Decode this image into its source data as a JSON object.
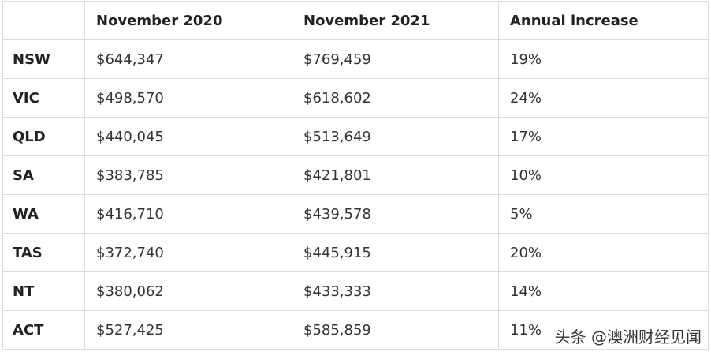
{
  "chart_data": {
    "type": "table",
    "columns": [
      "",
      "November 2020",
      "November 2021",
      "Annual increase"
    ],
    "rows": [
      {
        "state": "NSW",
        "nov_2020": "$644,347",
        "nov_2021": "$769,459",
        "increase": "19%"
      },
      {
        "state": "VIC",
        "nov_2020": "$498,570",
        "nov_2021": "$618,602",
        "increase": "24%"
      },
      {
        "state": "QLD",
        "nov_2020": "$440,045",
        "nov_2021": "$513,649",
        "increase": "17%"
      },
      {
        "state": "SA",
        "nov_2020": "$383,785",
        "nov_2021": "$421,801",
        "increase": "10%"
      },
      {
        "state": "WA",
        "nov_2020": "$416,710",
        "nov_2021": "$439,578",
        "increase": "5%"
      },
      {
        "state": "TAS",
        "nov_2020": "$372,740",
        "nov_2021": "$445,915",
        "increase": "20%"
      },
      {
        "state": "NT",
        "nov_2020": "$380,062",
        "nov_2021": "$433,333",
        "increase": "14%"
      },
      {
        "state": "ACT",
        "nov_2020": "$527,425",
        "nov_2021": "$585,859",
        "increase": "11%"
      }
    ]
  },
  "watermark": "头条 @澳洲财经见闻"
}
